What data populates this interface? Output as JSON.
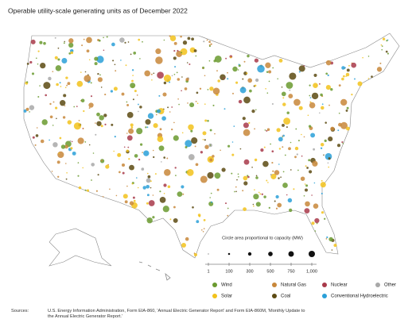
{
  "title": "Operable utility-scale generating units as of December 2022",
  "size_legend": {
    "title": "Circle area proportional to capacity (MW)",
    "ticks": [
      1,
      100,
      300,
      500,
      750,
      {
        "value": 1000,
        "label": "1,000"
      }
    ]
  },
  "legend": [
    {
      "name": "Wind",
      "color": "#6a9a2f"
    },
    {
      "name": "Natural Gas",
      "color": "#c8873a"
    },
    {
      "name": "Nuclear",
      "color": "#a83a4a"
    },
    {
      "name": "Other",
      "color": "#a8a8a8"
    },
    {
      "name": "Solar",
      "color": "#f2c21b"
    },
    {
      "name": "Coal",
      "color": "#5c4a12"
    },
    {
      "name": "Conventional Hydroelectric",
      "color": "#2aa0d8"
    }
  ],
  "sources": {
    "label": "Sources:",
    "text": "U.S. Energy Information Administration, Form EIA-860, 'Annual Electric Generator Report' and Form EIA-860M, 'Monthly Update to the Annual Electric Generator Report.'"
  }
}
